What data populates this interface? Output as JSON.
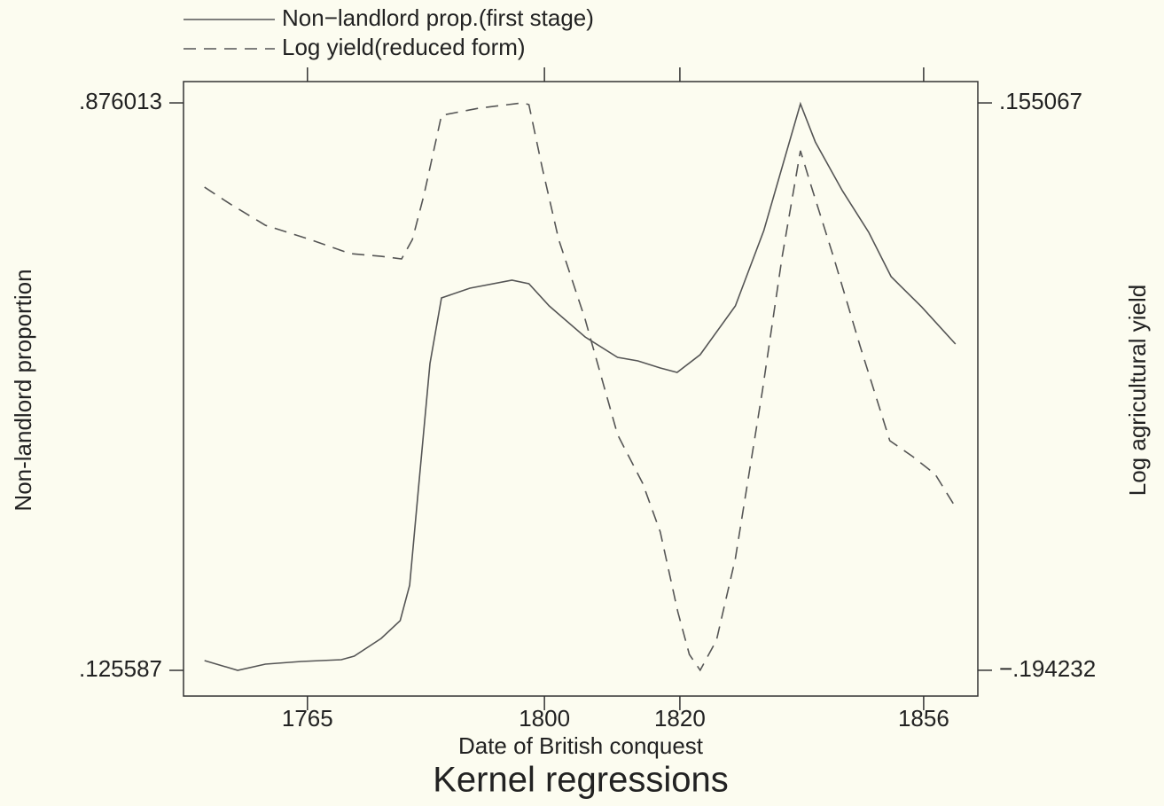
{
  "chart_data": {
    "type": "line",
    "title": "Kernel regressions",
    "xlabel": "Date of British conquest",
    "ylabel": "Non-landlord proportion",
    "y2label": "Log agricultural yield",
    "xlim": [
      1746.7,
      1864.0
    ],
    "xticks": [
      1765,
      1800,
      1820,
      1856
    ],
    "ylim": [
      0.0916,
      0.9042
    ],
    "yticks": [
      {
        "value": 0.876013,
        "label": ".876013"
      },
      {
        "value": 0.125587,
        "label": ".125587"
      }
    ],
    "y2lim": [
      -0.2101,
      0.1682
    ],
    "y2ticks": [
      {
        "value": 0.155067,
        "label": ".155067"
      },
      {
        "value": -0.194232,
        "label": "−.194232"
      }
    ],
    "series": [
      {
        "name": "Non−landlord prop.(first stage)",
        "color": "#555555",
        "style": "solid",
        "axis": "y",
        "x": [
          1749.8,
          1754.7,
          1758.8,
          1764.1,
          1770.0,
          1771.9,
          1775.9,
          1778.7,
          1780.1,
          1781.4,
          1783.1,
          1784.8,
          1789.0,
          1795.2,
          1797.7,
          1800.7,
          1806.0,
          1810.8,
          1813.8,
          1817.1,
          1819.6,
          1823.0,
          1828.2,
          1832.4,
          1836.1,
          1837.8,
          1840.0,
          1844.0,
          1847.9,
          1851.2,
          1855.7,
          1860.7
        ],
        "values": [
          0.1385,
          0.1256,
          0.1338,
          0.1373,
          0.1397,
          0.1444,
          0.1678,
          0.1913,
          0.2382,
          0.3671,
          0.5313,
          0.6181,
          0.631,
          0.6415,
          0.6368,
          0.6075,
          0.5665,
          0.5395,
          0.5348,
          0.5254,
          0.5196,
          0.543,
          0.6075,
          0.7072,
          0.8221,
          0.8748,
          0.8244,
          0.7599,
          0.7048,
          0.6462,
          0.6063,
          0.5571
        ]
      },
      {
        "name": "Log yield(reduced form)",
        "color": "#555555",
        "style": "dashed",
        "axis": "y2",
        "x": [
          1749.8,
          1753.6,
          1758.8,
          1765.4,
          1771.3,
          1775.9,
          1778.9,
          1780.5,
          1782.2,
          1784.8,
          1790.3,
          1796.8,
          1797.7,
          1799.7,
          1802.1,
          1806.0,
          1810.8,
          1814.5,
          1817.1,
          1819.7,
          1821.4,
          1823.0,
          1825.4,
          1828.2,
          1832.2,
          1835.1,
          1837.8,
          1839.4,
          1842.7,
          1846.6,
          1851.0,
          1854.4,
          1857.7,
          1860.7
        ],
        "values": [
          0.1032,
          0.0928,
          0.0797,
          0.071,
          0.0623,
          0.0606,
          0.059,
          0.071,
          0.0983,
          0.1474,
          0.1518,
          0.1551,
          0.154,
          0.1147,
          0.071,
          0.0219,
          -0.0491,
          -0.0791,
          -0.1091,
          -0.1583,
          -0.1845,
          -0.1942,
          -0.1757,
          -0.1254,
          -0.0218,
          0.0601,
          0.1256,
          0.1038,
          0.0601,
          0.0055,
          -0.0529,
          -0.0627,
          -0.0736,
          -0.0938
        ]
      }
    ]
  }
}
